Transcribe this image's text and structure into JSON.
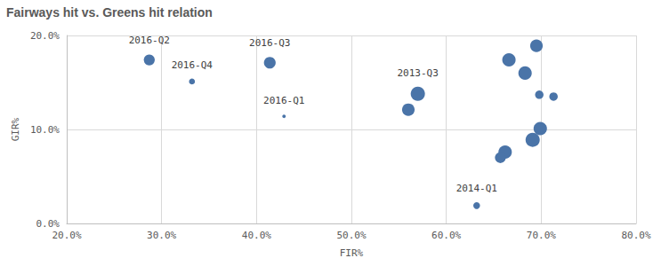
{
  "chart_data": {
    "type": "scatter",
    "title": "Fairways hit vs. Greens hit relation",
    "x_label": "FIR%",
    "y_label": "GIR%",
    "x": [
      28.7,
      33.2,
      41.4,
      42.9,
      57.0,
      56.0,
      66.6,
      69.5,
      68.3,
      69.8,
      71.3,
      69.9,
      69.1,
      66.2,
      65.7,
      63.2
    ],
    "values": [
      17.4,
      15.1,
      17.1,
      11.4,
      13.8,
      12.1,
      17.4,
      18.9,
      16.0,
      13.7,
      13.5,
      10.1,
      8.9,
      7.6,
      7.0,
      1.9
    ],
    "sizes": [
      10,
      4,
      11,
      1,
      14,
      12,
      13,
      12,
      13,
      7,
      7,
      13,
      14,
      13,
      10,
      5
    ],
    "labels": [
      "2016-Q2",
      "2016-Q4",
      "2016-Q3",
      "2016-Q1",
      "2013-Q3",
      null,
      null,
      null,
      null,
      null,
      null,
      null,
      null,
      null,
      null,
      "2014-Q1"
    ],
    "color": "#4a74a8",
    "xlim": [
      20,
      80
    ],
    "xticks": [
      {
        "value": 20,
        "label": "20.0%"
      },
      {
        "value": 30,
        "label": "30.0%"
      },
      {
        "value": 40,
        "label": "40.0%"
      },
      {
        "value": 50,
        "label": "50.0%"
      },
      {
        "value": 60,
        "label": "60.0%"
      },
      {
        "value": 70,
        "label": "70.0%"
      },
      {
        "value": 80,
        "label": "80.0%"
      }
    ],
    "ylim": [
      0,
      20
    ],
    "yticks": [
      {
        "value": 0,
        "label": "0.0%"
      },
      {
        "value": 10,
        "label": "10.0%"
      },
      {
        "value": 20,
        "label": "20.0%"
      }
    ],
    "grid": true,
    "marker": "circle"
  }
}
